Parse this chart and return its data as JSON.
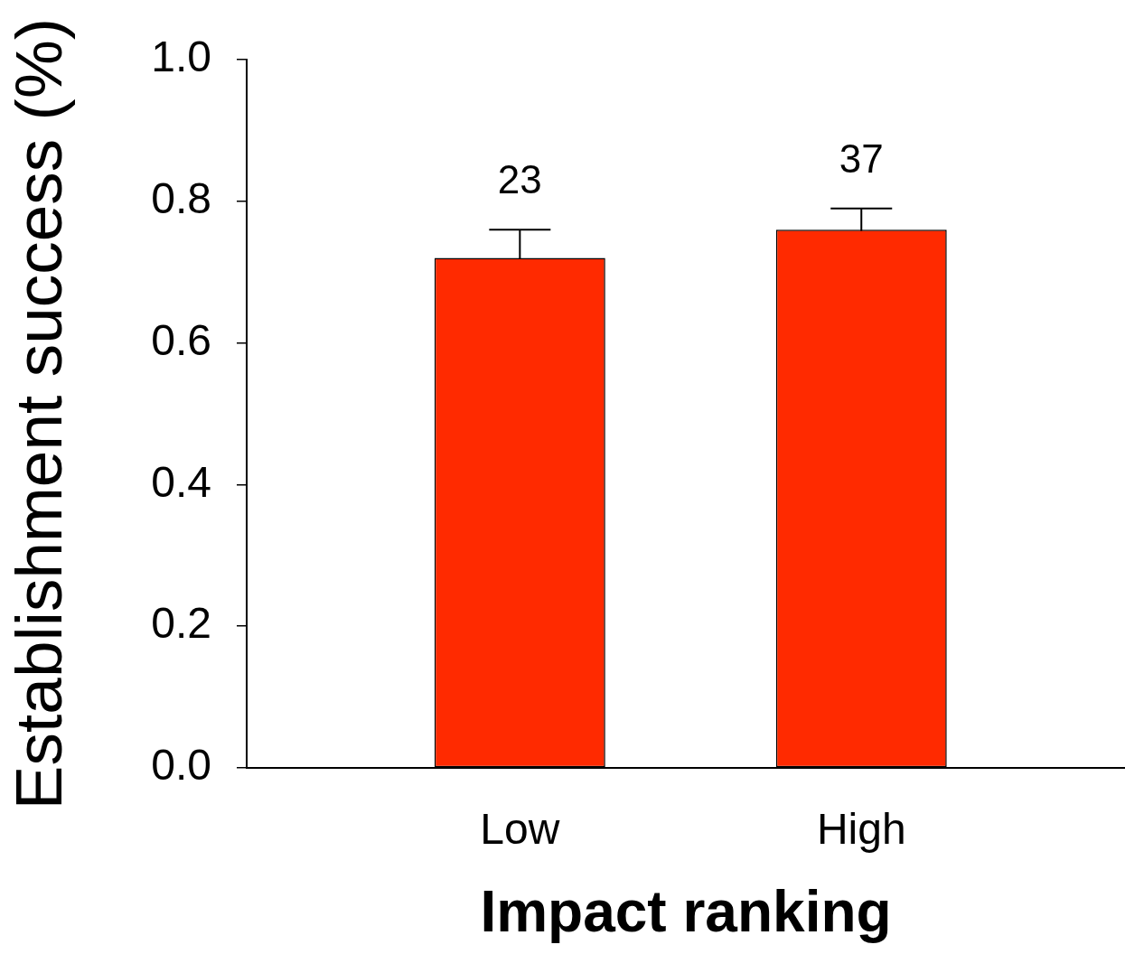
{
  "chart_data": {
    "type": "bar",
    "xlabel": "Impact ranking",
    "ylabel": "Establishment success (%)",
    "categories": [
      "Low",
      "High"
    ],
    "values": [
      0.72,
      0.76
    ],
    "errors": [
      0.04,
      0.03
    ],
    "color": "#ff2a00",
    "ylim": [
      0,
      1
    ],
    "yticks": [
      {
        "value": 0,
        "label": "0.0"
      },
      0.2,
      0.4,
      0.6,
      0.8,
      {
        "value": 1,
        "label": "1.0"
      }
    ],
    "annotations": [
      "23",
      "37"
    ]
  }
}
